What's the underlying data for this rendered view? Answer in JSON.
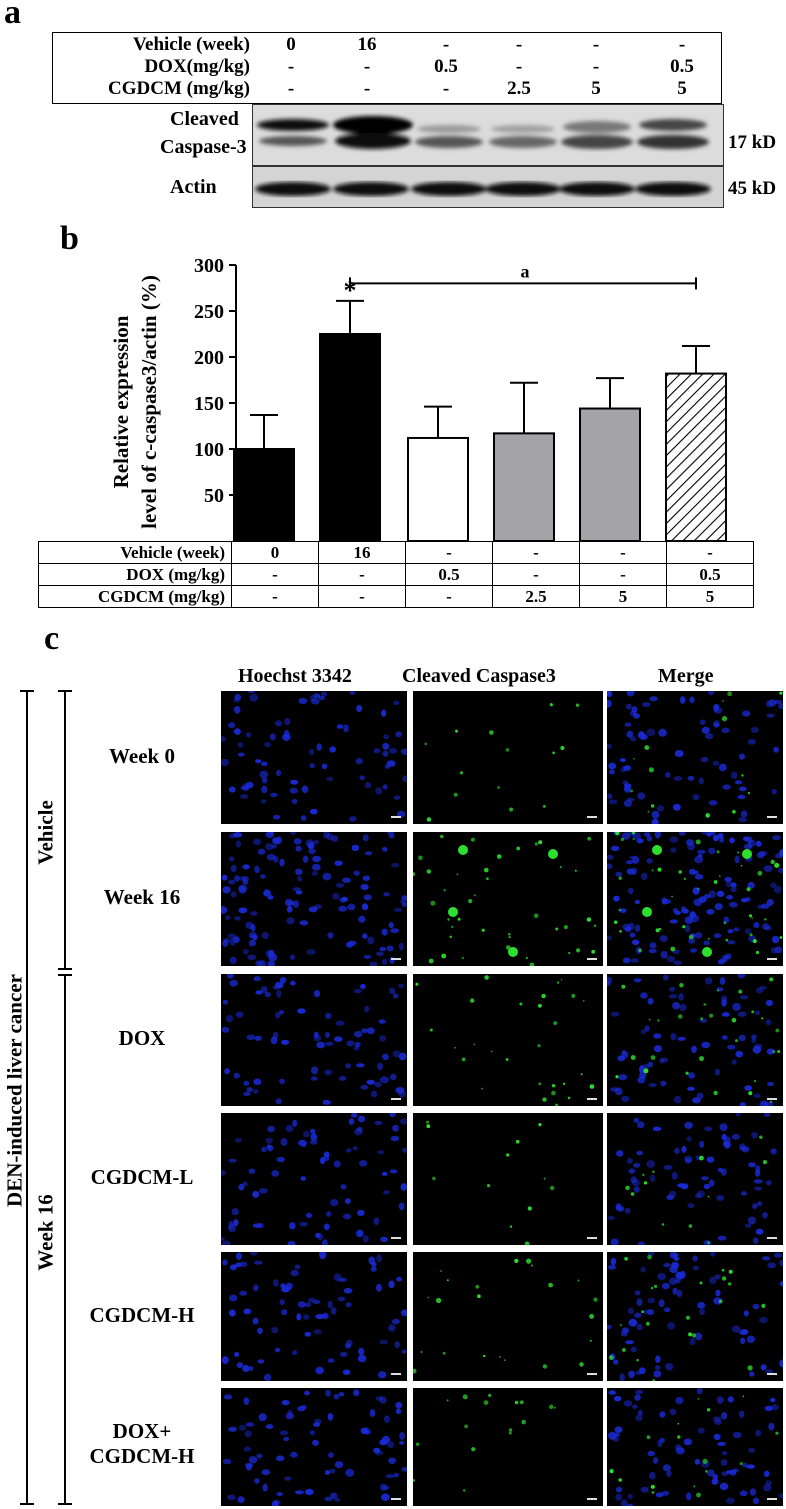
{
  "panel_a": {
    "letter": "a",
    "conditions": [
      {
        "label": "Vehicle (week)",
        "values": [
          "0",
          "16",
          "-",
          "-",
          "-",
          "-"
        ]
      },
      {
        "label": "DOX(mg/kg)",
        "values": [
          "-",
          "-",
          "0.5",
          "-",
          "-",
          "0.5"
        ]
      },
      {
        "label": "CGDCM (mg/kg)",
        "values": [
          "-",
          "-",
          "-",
          "2.5",
          "5",
          "5"
        ]
      }
    ],
    "blot_label_1": "Cleaved",
    "blot_label_2": "Caspase-3",
    "actin_label": "Actin",
    "kd_1": "17 kD",
    "kd_2": "45 kD"
  },
  "panel_b": {
    "letter": "b",
    "table": [
      {
        "label": "Vehicle (week)",
        "values": [
          "0",
          "16",
          "-",
          "-",
          "-",
          "-"
        ]
      },
      {
        "label": "DOX (mg/kg)",
        "values": [
          "-",
          "-",
          "0.5",
          "-",
          "-",
          "0.5"
        ]
      },
      {
        "label": "CGDCM (mg/kg)",
        "values": [
          "-",
          "-",
          "-",
          "2.5",
          "5",
          "5"
        ]
      }
    ]
  },
  "chart_data": {
    "type": "bar",
    "ylabel_line1": "Relative expression",
    "ylabel_line2": "level of c-caspase3/actin (%)",
    "ylim": [
      0,
      300
    ],
    "yticks": [
      "50",
      "100",
      "150",
      "200",
      "250",
      "300"
    ],
    "values": [
      100,
      225,
      112,
      117,
      144,
      182
    ],
    "errors": [
      37,
      36,
      34,
      55,
      33,
      30
    ],
    "fills": [
      "#000000",
      "#000000",
      "#ffffff",
      "#a3a3a8",
      "#a3a3a8",
      "hatch"
    ],
    "star_label": "*",
    "bracket_label": "a"
  },
  "panel_c": {
    "letter": "c",
    "column_headers": [
      "Hoechst 3342",
      "Cleaved Caspase3",
      "Merge"
    ],
    "outer_label": "DEN-induced liver cancer",
    "group_vehicle": "Vehicle",
    "group_week16": "Week 16",
    "rows": [
      {
        "line1": "Week 0",
        "line2": ""
      },
      {
        "line1": "Week 16",
        "line2": ""
      },
      {
        "line1": "DOX",
        "line2": ""
      },
      {
        "line1": "CGDCM-L",
        "line2": ""
      },
      {
        "line1": "CGDCM-H",
        "line2": ""
      },
      {
        "line1": "DOX+",
        "line2": "CGDCM-H"
      }
    ],
    "colors": {
      "hoechst": "#1a2bd9",
      "caspase": "#2ee02e"
    }
  }
}
